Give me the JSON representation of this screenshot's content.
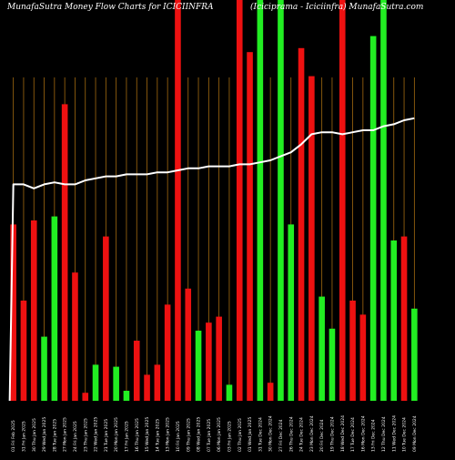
{
  "title_left": "MunafaSutra  Money Flow  Charts for ICICIINFRA",
  "title_right": "(Iciciprama  -  Iciciinfra) MunafaSutra.com",
  "colors": {
    "background": "#000000",
    "grid": "#a36a10",
    "up": "#22ee22",
    "down": "#ee1111",
    "line": "#ffffff"
  },
  "chart_data": {
    "type": "bar",
    "ylim": [
      0,
      100
    ],
    "grid": true,
    "bars": [
      {
        "date": "01 Fri Feb 2025",
        "value": 44,
        "direction": "down"
      },
      {
        "date": "31 Fri Jan 2025",
        "value": 25,
        "direction": "down"
      },
      {
        "date": "30 Thu Jan 2025",
        "value": 45,
        "direction": "down"
      },
      {
        "date": "29 Wed Jan 2025",
        "value": 16,
        "direction": "up"
      },
      {
        "date": "28 Tue Jan 2025",
        "value": 46,
        "direction": "up"
      },
      {
        "date": "27 Mon Jan 2025",
        "value": 74,
        "direction": "down"
      },
      {
        "date": "24 Fri Jan 2025",
        "value": 32,
        "direction": "down"
      },
      {
        "date": "23 Thu Jan 2025",
        "value": 2,
        "direction": "down"
      },
      {
        "date": "22 Wed Jan 2025",
        "value": 9,
        "direction": "up"
      },
      {
        "date": "21 Tue Jan 2025",
        "value": 41,
        "direction": "down"
      },
      {
        "date": "20 Mon Jan 2025",
        "value": 8.5,
        "direction": "up"
      },
      {
        "date": "17 Fri Jan 2025",
        "value": 2.5,
        "direction": "up"
      },
      {
        "date": "16 Thu Jan 2025",
        "value": 15,
        "direction": "down"
      },
      {
        "date": "15 Wed Jan 2025",
        "value": 6.5,
        "direction": "down"
      },
      {
        "date": "14 Tue Jan 2025",
        "value": 9,
        "direction": "down"
      },
      {
        "date": "13 Mon Jan 2025",
        "value": 24,
        "direction": "down"
      },
      {
        "date": "10 Fri Jan 2025",
        "value": 100,
        "direction": "down"
      },
      {
        "date": "09 Thu Jan 2025",
        "value": 28,
        "direction": "down"
      },
      {
        "date": "08 Wed Jan 2025",
        "value": 17.5,
        "direction": "up"
      },
      {
        "date": "07 Tue Jan 2025",
        "value": 19.5,
        "direction": "down"
      },
      {
        "date": "06 Mon Jan 2025",
        "value": 21,
        "direction": "down"
      },
      {
        "date": "03 Fri Jan 2025",
        "value": 4,
        "direction": "up"
      },
      {
        "date": "02 Thu Jan 2025",
        "value": 100,
        "direction": "down"
      },
      {
        "date": "01 Wed Jan 2025",
        "value": 87,
        "direction": "down"
      },
      {
        "date": "31 Tue Dec 2024",
        "value": 100,
        "direction": "up"
      },
      {
        "date": "30 Mon Dec 2024",
        "value": 4.5,
        "direction": "down"
      },
      {
        "date": "27 Fri Dec 2024",
        "value": 100,
        "direction": "up"
      },
      {
        "date": "26 Thu Dec 2024",
        "value": 44,
        "direction": "up"
      },
      {
        "date": "24 Tue Dec 2024",
        "value": 88,
        "direction": "down"
      },
      {
        "date": "23 Mon Dec 2024",
        "value": 81,
        "direction": "down"
      },
      {
        "date": "20 Fri Dec 2024",
        "value": 26,
        "direction": "up"
      },
      {
        "date": "19 Thu Dec 2024",
        "value": 18,
        "direction": "up"
      },
      {
        "date": "18 Wed Dec 2024",
        "value": 100,
        "direction": "down"
      },
      {
        "date": "17 Tue Dec 2024",
        "value": 25,
        "direction": "down"
      },
      {
        "date": "16 Mon Dec 2024",
        "value": 21.5,
        "direction": "down"
      },
      {
        "date": "13 Fri Dec 2024",
        "value": 91,
        "direction": "up"
      },
      {
        "date": "12 Thu Dec 2024",
        "value": 100,
        "direction": "up"
      },
      {
        "date": "11 Wed Dec 2024",
        "value": 40,
        "direction": "up"
      },
      {
        "date": "10 Tue Dec 2024",
        "value": 41,
        "direction": "down"
      },
      {
        "date": "09 Mon Dec 2024",
        "value": 23,
        "direction": "up"
      }
    ],
    "line_series": [
      54,
      54,
      53,
      54,
      54.5,
      54,
      54,
      55,
      55.5,
      56,
      56,
      56.5,
      56.5,
      56.5,
      57,
      57,
      57.5,
      58,
      58,
      58.5,
      58.5,
      58.5,
      59,
      59,
      59.5,
      60,
      61,
      62,
      64,
      66.5,
      67,
      67,
      66.5,
      67,
      67.5,
      67.5,
      68.5,
      69,
      70,
      70.5
    ]
  }
}
